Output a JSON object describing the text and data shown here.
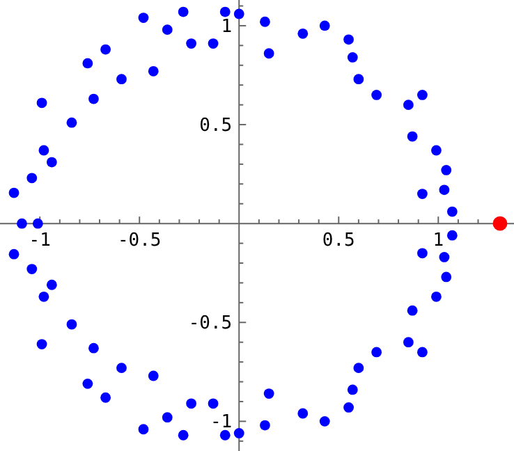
{
  "chart_data": {
    "type": "scatter",
    "marker": "circle",
    "grid": false,
    "xlim": [
      -1.2,
      1.38
    ],
    "ylim": [
      -1.15,
      1.13
    ],
    "xticks": [
      {
        "value": -1.1,
        "label": null
      },
      -1,
      {
        "value": -0.9,
        "label": null
      },
      {
        "value": -0.8,
        "label": null
      },
      {
        "value": -0.7,
        "label": null
      },
      {
        "value": -0.6,
        "label": null
      },
      -0.5,
      {
        "value": -0.4,
        "label": null
      },
      {
        "value": -0.3,
        "label": null
      },
      {
        "value": -0.2,
        "label": null
      },
      {
        "value": -0.1,
        "label": null
      },
      {
        "value": 0.1,
        "label": null
      },
      {
        "value": 0.2,
        "label": null
      },
      {
        "value": 0.3,
        "label": null
      },
      {
        "value": 0.4,
        "label": null
      },
      0.5,
      {
        "value": 0.6,
        "label": null
      },
      {
        "value": 0.7,
        "label": null
      },
      {
        "value": 0.8,
        "label": null
      },
      {
        "value": 0.9,
        "label": null
      },
      1,
      {
        "value": 1.1,
        "label": null
      },
      {
        "value": 1.2,
        "label": null
      },
      {
        "value": 1.3,
        "label": null
      }
    ],
    "yticks": [
      {
        "value": -1.1,
        "label": null
      },
      -1,
      {
        "value": -0.9,
        "label": null
      },
      {
        "value": -0.8,
        "label": null
      },
      {
        "value": -0.7,
        "label": null
      },
      {
        "value": -0.6,
        "label": null
      },
      -0.5,
      {
        "value": -0.4,
        "label": null
      },
      {
        "value": -0.3,
        "label": null
      },
      {
        "value": -0.2,
        "label": null
      },
      {
        "value": -0.1,
        "label": null
      },
      {
        "value": 0.1,
        "label": null
      },
      {
        "value": 0.2,
        "label": null
      },
      {
        "value": 0.3,
        "label": null
      },
      {
        "value": 0.4,
        "label": null
      },
      0.5,
      {
        "value": 0.6,
        "label": null
      },
      {
        "value": 0.7,
        "label": null
      },
      {
        "value": 0.8,
        "label": null
      },
      {
        "value": 0.9,
        "label": null
      },
      1,
      {
        "value": 1.1,
        "label": null
      }
    ],
    "series": [
      {
        "color": "#0000ff",
        "x": [
          -1.13,
          -1.09,
          -1.01,
          -1.04,
          -0.98,
          -0.94,
          -0.99,
          -0.84,
          -0.73,
          -0.76,
          -0.67,
          -0.59,
          -0.48,
          -0.43,
          -0.36,
          -0.28,
          -0.24,
          -0.13,
          -0.07,
          0.0,
          0.13,
          0.15,
          0.32,
          0.43,
          0.55,
          0.57,
          0.6,
          0.69,
          0.85,
          0.92,
          0.87,
          0.99,
          1.04,
          0.92,
          1.03,
          1.07,
          -1.13,
          -1.04,
          -0.98,
          -0.94,
          -0.99,
          -0.84,
          -0.73,
          -0.76,
          -0.67,
          -0.59,
          -0.48,
          -0.43,
          -0.36,
          -0.28,
          -0.24,
          -0.13,
          -0.07,
          0.0,
          0.13,
          0.15,
          0.32,
          0.43,
          0.55,
          0.57,
          0.6,
          0.69,
          0.85,
          0.92,
          0.87,
          0.99,
          1.04,
          0.92,
          1.03,
          1.07
        ],
        "values": [
          0.155,
          0,
          0,
          0.23,
          0.37,
          0.31,
          0.61,
          0.51,
          0.63,
          0.81,
          0.88,
          0.73,
          1.04,
          0.77,
          0.98,
          1.07,
          0.91,
          0.91,
          1.07,
          1.06,
          1.02,
          0.86,
          0.96,
          1.0,
          0.93,
          0.84,
          0.73,
          0.65,
          0.6,
          0.65,
          0.44,
          0.37,
          0.27,
          0.15,
          0.17,
          0.06,
          -0.155,
          -0.23,
          -0.37,
          -0.31,
          -0.61,
          -0.51,
          -0.63,
          -0.81,
          -0.88,
          -0.73,
          -1.04,
          -0.77,
          -0.98,
          -1.07,
          -0.91,
          -0.91,
          -1.07,
          -1.06,
          -1.02,
          -0.86,
          -0.96,
          -1.0,
          -0.93,
          -0.84,
          -0.73,
          -0.65,
          -0.6,
          -0.65,
          -0.44,
          -0.37,
          -0.27,
          -0.15,
          -0.17,
          -0.06
        ]
      },
      {
        "color": "#ff0000",
        "x": [
          1.31
        ],
        "values": [
          0
        ]
      }
    ]
  }
}
